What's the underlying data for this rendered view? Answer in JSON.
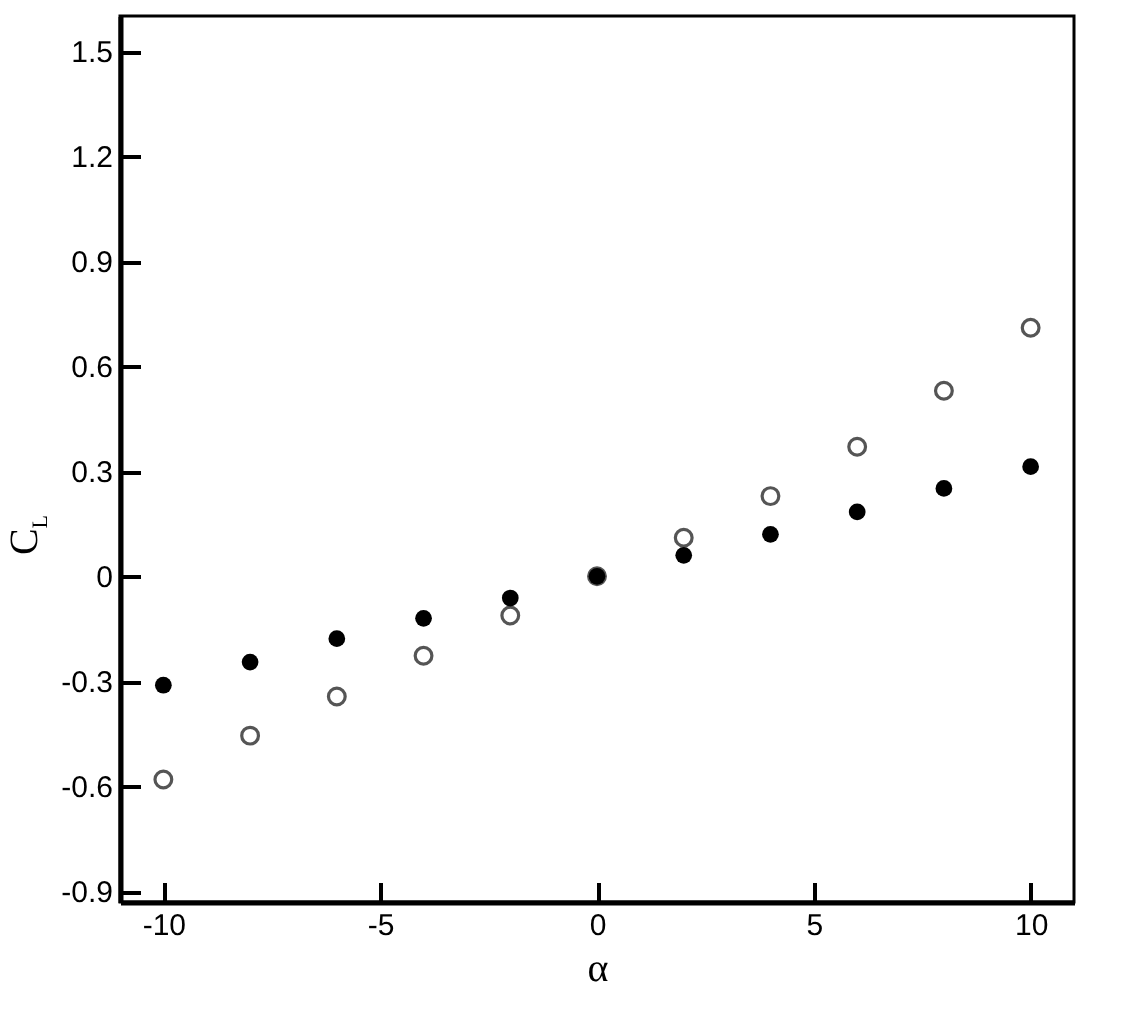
{
  "chart_data": {
    "type": "scatter",
    "xlabel": "α",
    "ylabel": "C$_{L}$",
    "x": [
      -10,
      -8,
      -6,
      -4,
      -2,
      0,
      2,
      4,
      6,
      8,
      10
    ],
    "series": [
      {
        "color": "#555555",
        "values": [
          -0.58,
          -0.455,
          -0.343,
          -0.227,
          -0.112,
          0,
          0.11,
          0.229,
          0.37,
          0.53,
          0.71
        ]
      },
      {
        "color": "#000000",
        "values": [
          -0.311,
          -0.245,
          -0.178,
          -0.12,
          -0.062,
          0,
          0.06,
          0.12,
          0.184,
          0.251,
          0.313
        ]
      }
    ],
    "xlim": [
      -11,
      11
    ],
    "xticks": [
      -10,
      -5,
      0,
      5,
      10
    ],
    "ylim": [
      -0.93,
      1.6
    ],
    "yticks": [
      -0.9,
      -0.6,
      -0.3,
      0,
      0.3,
      0.6,
      0.9,
      1.2,
      1.5
    ],
    "marker": "circle",
    "grid": false
  }
}
